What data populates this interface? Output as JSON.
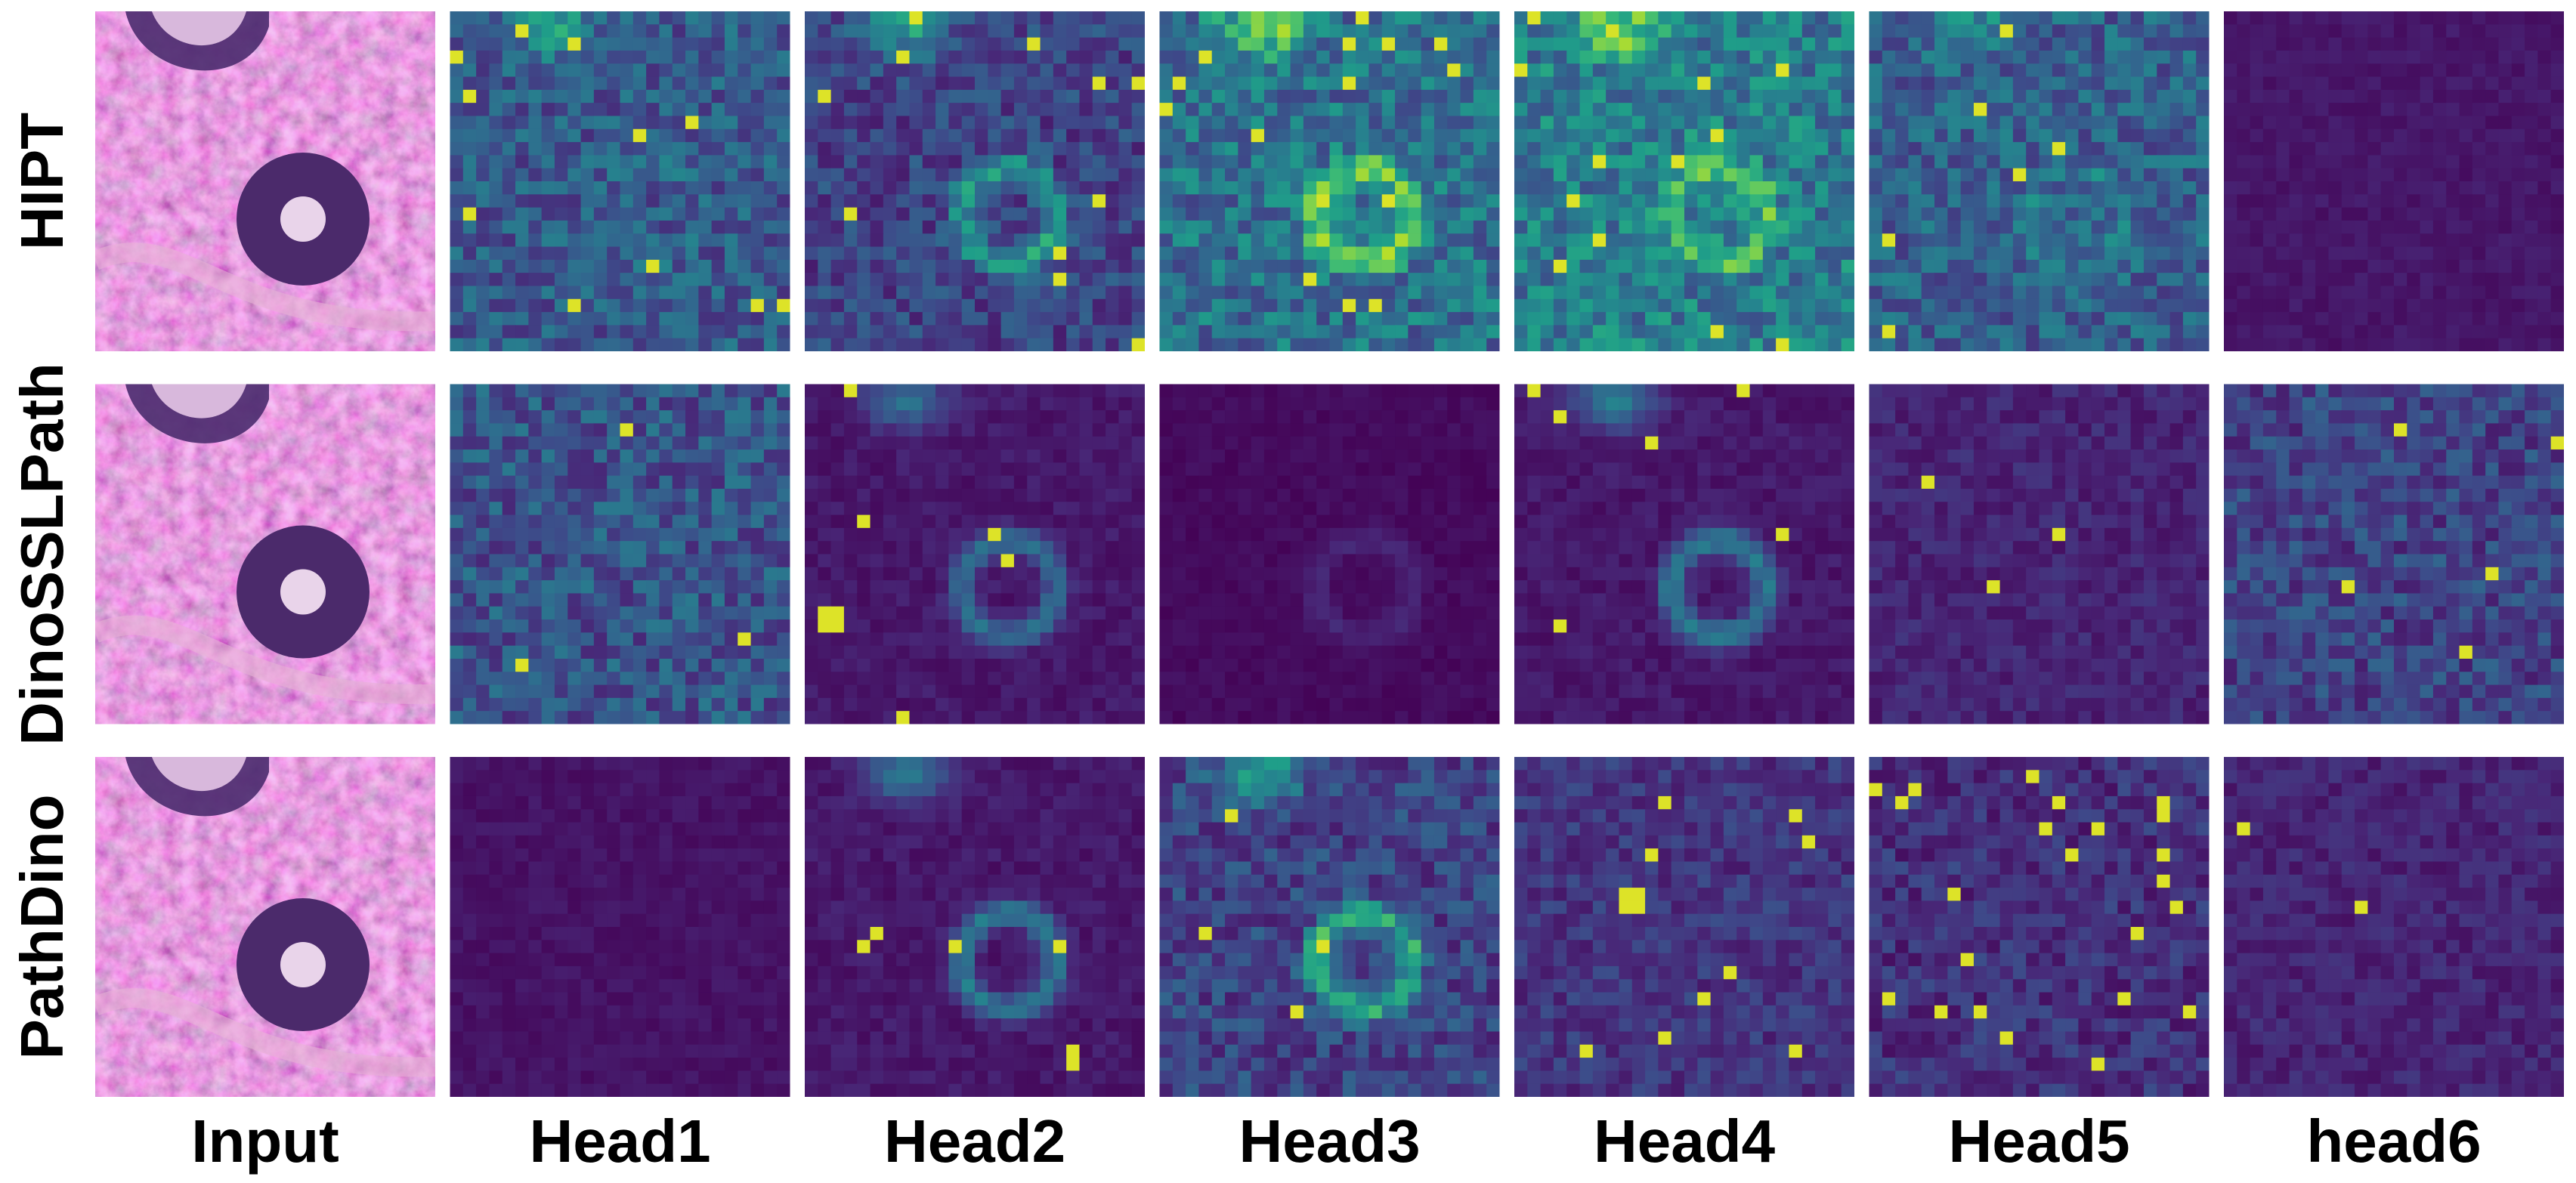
{
  "row_labels": [
    "HIPT",
    "DinoSSLPath",
    "PathDino"
  ],
  "column_labels": [
    "Input",
    "Head1",
    "Head2",
    "Head3",
    "Head4",
    "Head5",
    "head6"
  ]
}
